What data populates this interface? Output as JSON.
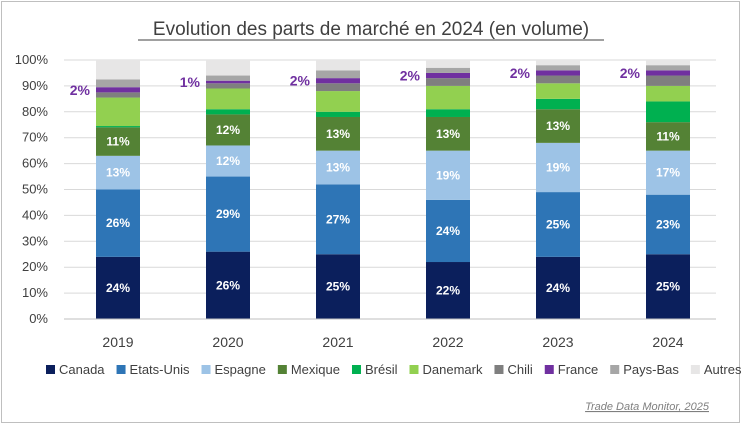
{
  "chart_data": {
    "type": "bar",
    "stacked": true,
    "title": "Evolution des parts de marché en 2024 (en volume)",
    "source": "Trade Data Monitor, 2025",
    "categories": [
      "2019",
      "2020",
      "2021",
      "2022",
      "2023",
      "2024"
    ],
    "ylim": [
      0,
      100
    ],
    "yticks": [
      "0%",
      "10%",
      "20%",
      "30%",
      "40%",
      "50%",
      "60%",
      "70%",
      "80%",
      "90%",
      "100%"
    ],
    "legend_position": "bottom",
    "series": [
      {
        "name": "Canada",
        "color": "#0b1f5c",
        "values": [
          24,
          26,
          25,
          22,
          24,
          25
        ],
        "labels": [
          "24%",
          "26%",
          "25%",
          "22%",
          "24%",
          "25%"
        ]
      },
      {
        "name": "Etats-Unis",
        "color": "#2e75b6",
        "values": [
          26,
          29,
          27,
          24,
          25,
          23
        ],
        "labels": [
          "26%",
          "29%",
          "27%",
          "24%",
          "25%",
          "23%"
        ]
      },
      {
        "name": "Espagne",
        "color": "#9dc3e6",
        "values": [
          13,
          12,
          13,
          19,
          19,
          17
        ],
        "labels": [
          "13%",
          "12%",
          "13%",
          "19%",
          "19%",
          "17%"
        ]
      },
      {
        "name": "Mexique",
        "color": "#548235",
        "values": [
          11,
          12,
          13,
          13,
          13,
          11
        ],
        "labels": [
          "11%",
          "12%",
          "13%",
          "13%",
          "13%",
          "11%"
        ]
      },
      {
        "name": "Brésil",
        "color": "#00b050",
        "values": [
          0.5,
          2,
          2,
          3,
          4,
          8
        ],
        "labels": []
      },
      {
        "name": "Danemark",
        "color": "#92d050",
        "values": [
          11,
          8,
          8,
          9,
          6,
          6
        ],
        "labels": []
      },
      {
        "name": "Chili",
        "color": "#7f7f7f",
        "values": [
          2,
          2,
          3,
          3,
          3,
          4
        ],
        "labels": []
      },
      {
        "name": "France",
        "color": "#7030a0",
        "values": [
          2,
          1,
          2,
          2,
          2,
          2
        ],
        "labels": [
          "2%",
          "1%",
          "2%",
          "2%",
          "2%",
          "2%"
        ]
      },
      {
        "name": "Pays-Bas",
        "color": "#a6a6a6",
        "values": [
          3,
          2,
          3,
          2,
          2,
          2
        ],
        "labels": []
      },
      {
        "name": "Autres",
        "color": "#e7e6e6",
        "values": [
          7.5,
          6,
          4,
          3,
          2,
          2
        ],
        "labels": []
      }
    ]
  }
}
